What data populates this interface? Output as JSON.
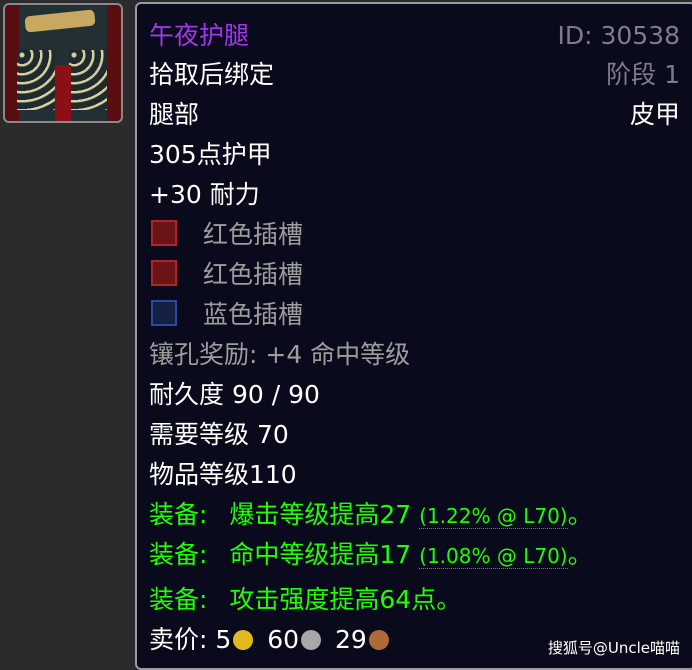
{
  "item": {
    "name": "午夜护腿",
    "id_label": "ID: 30538",
    "binding": "拾取后绑定",
    "phase": "阶段 1",
    "slot": "腿部",
    "type": "皮甲",
    "armor": "305点护甲",
    "stamina": "+30 耐力",
    "sockets": [
      {
        "label": "红色插槽",
        "color": "#b0242a"
      },
      {
        "label": "红色插槽",
        "color": "#b0242a"
      },
      {
        "label": "蓝色插槽",
        "color": "#2a4aa0"
      }
    ],
    "socket_bonus": "镶孔奖励: +4 命中等级",
    "durability": "耐久度 90 / 90",
    "required_level": "需要等级 70",
    "item_level": "物品等级110",
    "equip": [
      {
        "prefix": "装备:",
        "text": "爆击等级提高27",
        "detail": "(1.22% @ L70)",
        "end": "。"
      },
      {
        "prefix": "装备:",
        "text": "命中等级提高17",
        "detail": "(1.08% @ L70)",
        "end": "。"
      },
      {
        "prefix": "装备:",
        "text": "攻击强度提高64点。",
        "detail": "",
        "end": ""
      }
    ],
    "sell": {
      "label": "卖价:",
      "gold": "5",
      "silver": "60",
      "copper": "29"
    }
  },
  "colors": {
    "epic": "#a335ee",
    "equip": "#1eff00",
    "background": "#090a1c"
  },
  "watermark": "搜狐号@Uncle喵喵"
}
